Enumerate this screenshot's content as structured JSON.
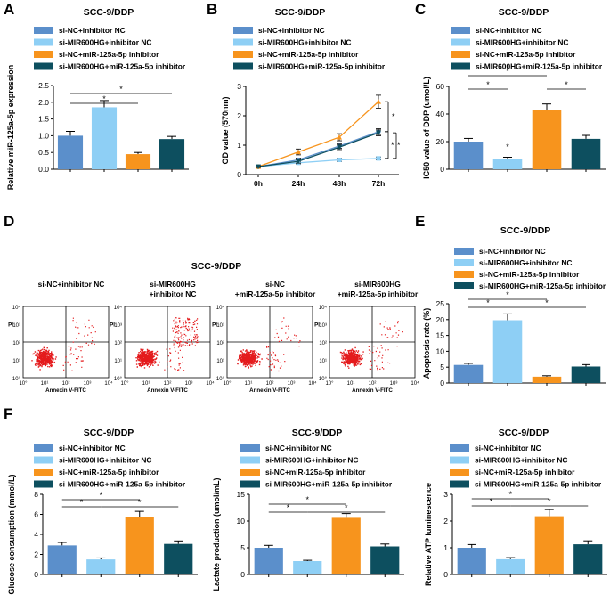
{
  "figure": {
    "panel_letters": [
      "A",
      "B",
      "C",
      "D",
      "E",
      "F"
    ],
    "colors": {
      "si-NC+inhibitor NC": "#5b8fcb",
      "si-MIR600HG+inhibitor NC": "#8ecff5",
      "si-NC+miR-125a-5p inhibitor": "#f7941d",
      "si-MIR600HG+miR-125a-5p inhibitor": "#0d4f5f"
    },
    "flow": {
      "title": "SCC-9/DDP",
      "xlabel": "Annexin V-FITC",
      "ylabel": "PI",
      "ticks": [
        "10°",
        "10¹",
        "10²",
        "10³",
        "10⁴"
      ],
      "panels": [
        {
          "title_lines": [
            "si-NC+inhibitor NC"
          ]
        },
        {
          "title_lines": [
            "si-MIR600HG",
            "+inhibitor NC"
          ]
        },
        {
          "title_lines": [
            "si-NC",
            "+miR-125a-5p inhibitor"
          ]
        },
        {
          "title_lines": [
            "si-MIR600HG",
            "+miR-125a-5p inhibitor"
          ]
        }
      ]
    }
  },
  "chart_data": [
    {
      "panel": "A",
      "type": "bar",
      "title": "SCC-9/DDP",
      "ylabel": "Relative miR-125a-5p expression",
      "legend": [
        "si-NC+inhibitor NC",
        "si-MIR600HG+inhibitor NC",
        "si-NC+miR-125a-5p inhibitor",
        "si-MIR600HG+miR-125a-5p inhibitor"
      ],
      "values": [
        1.0,
        1.85,
        0.45,
        0.9
      ],
      "errors": [
        0.13,
        0.2,
        0.05,
        0.08
      ],
      "ylim": [
        0,
        2.5
      ],
      "yticks": [
        "0.0",
        "0.5",
        "1.0",
        "1.5",
        "2.0",
        "2.5"
      ],
      "sig_stars": [
        "*",
        "*",
        "*"
      ]
    },
    {
      "panel": "B",
      "type": "line",
      "title": "SCC-9/DDP",
      "ylabel": "OD value (570nm)",
      "x": [
        "0h",
        "24h",
        "48h",
        "72h"
      ],
      "series": [
        {
          "name": "si-NC+inhibitor NC",
          "values": [
            0.27,
            0.5,
            0.97,
            1.46
          ],
          "errors": [
            0.03,
            0.06,
            0.08,
            0.1
          ]
        },
        {
          "name": "si-MIR600HG+inhibitor NC",
          "values": [
            0.27,
            0.4,
            0.5,
            0.55
          ],
          "errors": [
            0.03,
            0.04,
            0.05,
            0.05
          ]
        },
        {
          "name": "si-NC+miR-125a-5p inhibitor",
          "values": [
            0.27,
            0.77,
            1.27,
            2.48
          ],
          "errors": [
            0.03,
            0.1,
            0.12,
            0.22
          ]
        },
        {
          "name": "si-MIR600HG+miR-125a-5p inhibitor",
          "values": [
            0.27,
            0.45,
            0.93,
            1.42
          ],
          "errors": [
            0.03,
            0.06,
            0.08,
            0.1
          ]
        }
      ],
      "ylim": [
        0,
        3
      ],
      "yticks": [
        "0",
        "1",
        "2",
        "3"
      ],
      "sig_stars": [
        "*",
        "*",
        "*"
      ]
    },
    {
      "panel": "C",
      "type": "bar",
      "title": "SCC-9/DDP",
      "ylabel": "IC50 value of DDP (umol/L)",
      "legend": [
        "si-NC+inhibitor NC",
        "si-MIR600HG+inhibitor NC",
        "si-NC+miR-125a-5p inhibitor",
        "si-MIR600HG+miR-125a-5p inhibitor"
      ],
      "values": [
        20,
        7.5,
        43,
        22
      ],
      "errors": [
        2.3,
        1.2,
        4.3,
        2.5
      ],
      "ylim": [
        0,
        60
      ],
      "yticks": [
        "0",
        "20",
        "40",
        "60"
      ],
      "sig_stars": [
        "*",
        "*",
        "*",
        "*"
      ]
    },
    {
      "panel": "E",
      "type": "bar",
      "title": "SCC-9/DDP",
      "ylabel": "Apoptosis rate (%)",
      "legend": [
        "si-NC+inhibitor NC",
        "si-MIR600HG+inhibitor NC",
        "si-NC+miR-125a-5p inhibitor",
        "si-MIR600HG+miR-125a-5p inhibitor"
      ],
      "values": [
        5.7,
        19.8,
        2.0,
        5.2
      ],
      "errors": [
        0.5,
        2.0,
        0.3,
        0.6
      ],
      "ylim": [
        0,
        25
      ],
      "yticks": [
        "0",
        "5",
        "10",
        "15",
        "20",
        "25"
      ],
      "sig_stars": [
        "*",
        "*",
        "*"
      ]
    },
    {
      "panel": "F1",
      "type": "bar",
      "title": "SCC-9/DDP",
      "ylabel": "Glucose consumption (mmol/L)",
      "legend": [
        "si-NC+inhibitor NC",
        "si-MIR600HG+inhibitor NC",
        "si-NC+miR-125a-5p inhibitor",
        "si-MIR600HG+miR-125a-5p inhibitor"
      ],
      "values": [
        2.9,
        1.5,
        5.75,
        3.05
      ],
      "errors": [
        0.3,
        0.15,
        0.55,
        0.3
      ],
      "ylim": [
        0,
        8
      ],
      "yticks": [
        "0",
        "2",
        "4",
        "6",
        "8"
      ],
      "sig_stars": [
        "*",
        "*",
        "*"
      ]
    },
    {
      "panel": "F2",
      "type": "bar",
      "title": "SCC-9/DDP",
      "ylabel": "Lactate production (umol/mL)",
      "legend": [
        "si-NC+inhibitor NC",
        "si-MIR600HG+inhibitor NC",
        "si-NC+miR-125a-5p inhibitor",
        "si-MIR600HG+miR-125a-5p inhibitor"
      ],
      "values": [
        5.0,
        2.5,
        10.6,
        5.25
      ],
      "errors": [
        0.45,
        0.15,
        0.8,
        0.45
      ],
      "ylim": [
        0,
        15
      ],
      "yticks": [
        "0",
        "5",
        "10",
        "15"
      ],
      "sig_stars": [
        "*",
        "*",
        "*"
      ]
    },
    {
      "panel": "F3",
      "type": "bar",
      "title": "SCC-9/DDP",
      "ylabel": "Relative ATP luminescence",
      "legend": [
        "si-NC+inhibitor NC",
        "si-MIR600HG+inhibitor NC",
        "si-NC+miR-125a-5p inhibitor",
        "si-MIR600HG+miR-125a-5p inhibitor"
      ],
      "values": [
        1.0,
        0.57,
        2.18,
        1.13
      ],
      "errors": [
        0.12,
        0.06,
        0.25,
        0.13
      ],
      "ylim": [
        0,
        3
      ],
      "yticks": [
        "0",
        "1",
        "2",
        "3"
      ],
      "sig_stars": [
        "*",
        "*",
        "*"
      ]
    }
  ]
}
